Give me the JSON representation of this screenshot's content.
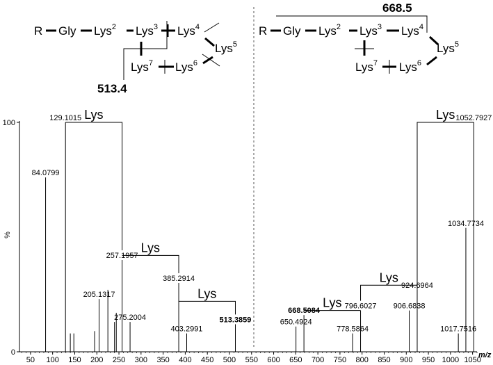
{
  "scheme_left": {
    "residues": [
      "R",
      "Gly",
      "Lys",
      "Lys",
      "Lys",
      "Lys",
      "Lys",
      "Lys"
    ],
    "superscripts": [
      "",
      "",
      "2",
      "3",
      "4",
      "5",
      "6",
      "7"
    ],
    "fragment_label": "513.4"
  },
  "scheme_right": {
    "residues": [
      "R",
      "Gly",
      "Lys",
      "Lys",
      "Lys",
      "Lys",
      "Lys",
      "Lys"
    ],
    "superscripts": [
      "",
      "",
      "2",
      "3",
      "4",
      "5",
      "6",
      "7"
    ],
    "fragment_label": "668.5"
  },
  "chart_data": {
    "type": "bar",
    "title": "",
    "xlabel": "m/z",
    "ylabel": "%",
    "xlim": [
      25,
      1060
    ],
    "ylim": [
      0,
      100
    ],
    "x_ticks": [
      50,
      100,
      150,
      200,
      250,
      300,
      350,
      400,
      450,
      500,
      550,
      600,
      650,
      700,
      750,
      800,
      850,
      900,
      950,
      1000,
      1050
    ],
    "y_ticks": [
      0,
      100
    ],
    "grid": false,
    "peaks": [
      {
        "mz": 84.0799,
        "intensity": 76,
        "label": "84.0799"
      },
      {
        "mz": 129.1015,
        "intensity": 100,
        "label": "129.1015"
      },
      {
        "mz": 140,
        "intensity": 8
      },
      {
        "mz": 148,
        "intensity": 8
      },
      {
        "mz": 195,
        "intensity": 9
      },
      {
        "mz": 205.1317,
        "intensity": 23,
        "label": "205.1317"
      },
      {
        "mz": 225,
        "intensity": 27
      },
      {
        "mz": 240,
        "intensity": 13
      },
      {
        "mz": 244,
        "intensity": 17
      },
      {
        "mz": 257.1957,
        "intensity": 40,
        "label": "257.1957"
      },
      {
        "mz": 275.2004,
        "intensity": 13,
        "label": "275.2004"
      },
      {
        "mz": 385.2914,
        "intensity": 30,
        "label": "385.2914"
      },
      {
        "mz": 403.2991,
        "intensity": 8,
        "label": "403.2991"
      },
      {
        "mz": 513.3859,
        "intensity": 12,
        "label": "513.3859",
        "bold": true
      },
      {
        "mz": 650.4924,
        "intensity": 11,
        "label": "650.4924"
      },
      {
        "mz": 668.5084,
        "intensity": 16,
        "label": "668.5084",
        "bold": true
      },
      {
        "mz": 778.5864,
        "intensity": 8,
        "label": "778.5864"
      },
      {
        "mz": 796.6027,
        "intensity": 18,
        "label": "796.6027"
      },
      {
        "mz": 906.6838,
        "intensity": 18,
        "label": "906.6838"
      },
      {
        "mz": 924.6964,
        "intensity": 27,
        "label": "924.6964"
      },
      {
        "mz": 1017.7516,
        "intensity": 8,
        "label": "1017.7516"
      },
      {
        "mz": 1034.7734,
        "intensity": 54,
        "label": "1034.7734"
      },
      {
        "mz": 1052.7927,
        "intensity": 100,
        "label": "1052.7927"
      }
    ],
    "annotations": [
      {
        "text": "Lys",
        "from_mz": 129.1015,
        "to_mz": 257.1957,
        "level": 100
      },
      {
        "text": "Lys",
        "from_mz": 257.1957,
        "to_mz": 385.2914,
        "level": 42
      },
      {
        "text": "Lys",
        "from_mz": 385.2914,
        "to_mz": 513.3859,
        "level": 22
      },
      {
        "text": "Lys",
        "from_mz": 668.5084,
        "to_mz": 796.6027,
        "level": 18
      },
      {
        "text": "Lys",
        "from_mz": 796.6027,
        "to_mz": 924.6964,
        "level": 29
      },
      {
        "text": "Lys",
        "from_mz": 924.6964,
        "to_mz": 1052.7927,
        "level": 100
      }
    ]
  }
}
